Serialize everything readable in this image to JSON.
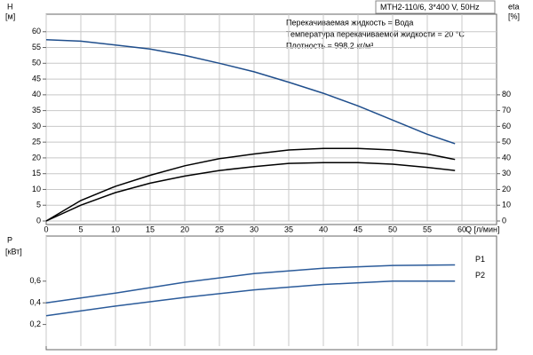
{
  "chart_data": [
    {
      "type": "line",
      "title": "MTH2-110/6, 3*400 V, 50Hz",
      "annotations": [
        "Перекачиваемая жидкость = Вода",
        "Температура перекачиваемой жидкости = 20 °C",
        "Плотность = 998.2 кг/м³"
      ],
      "ylabel": "H",
      "yunit": "[м]",
      "y2label": "eta",
      "y2unit": "[%]",
      "xlabel": "Q [л/мин]",
      "x": [
        0,
        5,
        10,
        15,
        20,
        25,
        30,
        35,
        40,
        45,
        50,
        55,
        59
      ],
      "xlim": [
        0,
        65
      ],
      "xticks": [
        0,
        5,
        10,
        15,
        20,
        25,
        30,
        35,
        40,
        45,
        50,
        55,
        60
      ],
      "ylim": [
        0,
        65
      ],
      "yticks": [
        0,
        5,
        10,
        15,
        20,
        25,
        30,
        35,
        40,
        45,
        50,
        55,
        60
      ],
      "y2lim": [
        0,
        130
      ],
      "y2ticks": [
        0,
        10,
        20,
        30,
        40,
        50,
        60,
        70,
        80
      ],
      "grid": true,
      "series": [
        {
          "color": "#1f4e8c",
          "values": [
            57.5,
            57,
            55.8,
            54.5,
            52.5,
            50,
            47.3,
            44,
            40.5,
            36.5,
            32,
            27.5,
            24.5
          ]
        },
        {
          "color": "#000000",
          "axis": "y2",
          "values": [
            0,
            13,
            22,
            29,
            35,
            39.5,
            42.5,
            45,
            46,
            46,
            45,
            42.5,
            39
          ]
        },
        {
          "color": "#000000",
          "axis": "y2",
          "values": [
            0,
            10,
            18,
            24,
            28.5,
            32,
            34.5,
            36.5,
            37,
            37,
            36,
            34,
            32
          ]
        }
      ]
    },
    {
      "type": "line",
      "ylabel": "P",
      "yunit": "[кВт]",
      "x": [
        0,
        10,
        20,
        30,
        40,
        50,
        59
      ],
      "xlim": [
        0,
        65
      ],
      "xticks": [
        0,
        5,
        10,
        15,
        20,
        25,
        30,
        35,
        40,
        45,
        50,
        55,
        60
      ],
      "ylim": [
        0,
        1
      ],
      "yticks": [
        {
          "value": 0.2,
          "label": "0,2"
        },
        {
          "value": 0.4,
          "label": "0,4"
        },
        {
          "value": 0.6,
          "label": "0,6"
        }
      ],
      "grid": true,
      "series": [
        {
          "name": "P1",
          "color": "#2b5b9a",
          "values": [
            0.4,
            0.49,
            0.59,
            0.67,
            0.72,
            0.745,
            0.75
          ]
        },
        {
          "name": "P2",
          "color": "#2b5b9a",
          "values": [
            0.28,
            0.37,
            0.45,
            0.52,
            0.57,
            0.6,
            0.6
          ]
        }
      ]
    }
  ]
}
